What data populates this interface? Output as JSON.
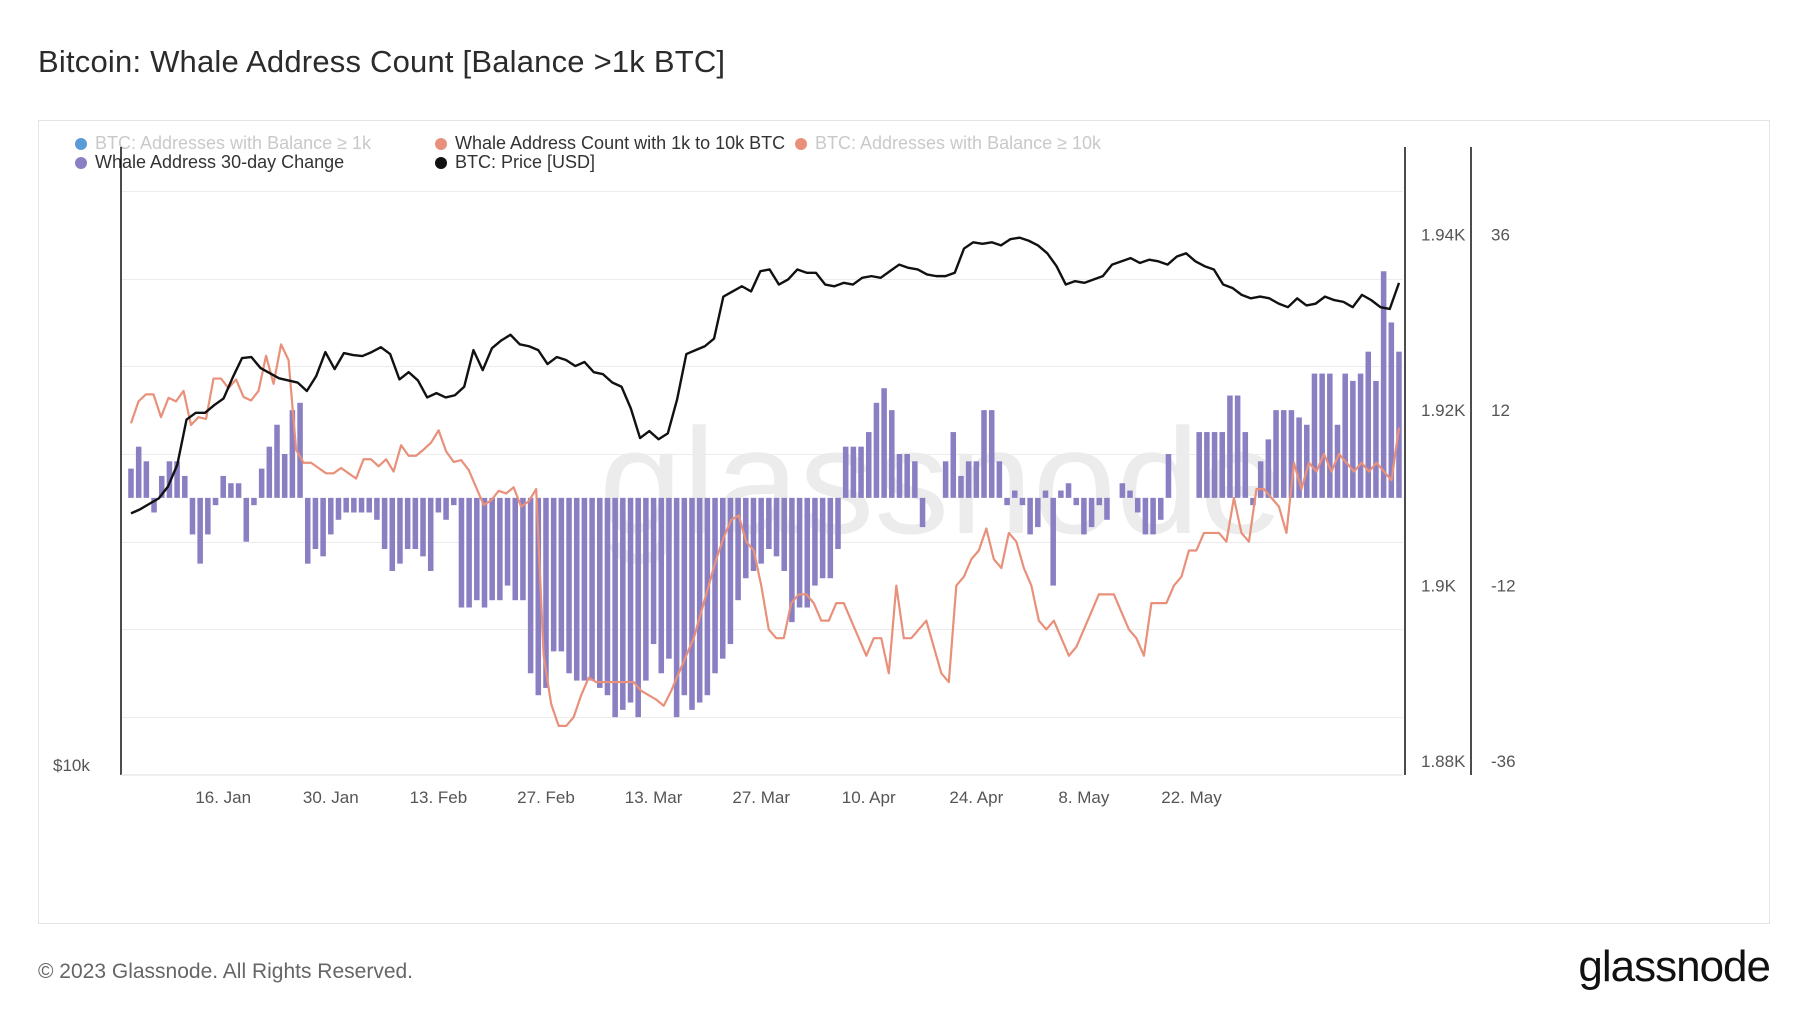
{
  "header": {
    "title": "Bitcoin: Whale Address Count [Balance >1k BTC]"
  },
  "footer": {
    "copyright": "© 2023 Glassnode. All Rights Reserved.",
    "brand": "glassnode"
  },
  "watermark": "glassnode",
  "legend": [
    {
      "label": "BTC: Addresses with Balance ≥ 1k",
      "color": "#5b9bd5",
      "active": false
    },
    {
      "label": "Whale Address Count with 1k to 10k BTC",
      "color": "#e8907a",
      "active": true
    },
    {
      "label": "BTC: Addresses with Balance ≥ 10k",
      "color": "#e8907a",
      "active": false
    },
    {
      "label": "Whale Address 30-day Change",
      "color": "#8a7fc2",
      "active": true
    },
    {
      "label": "BTC: Price [USD]",
      "color": "#111111",
      "active": true
    }
  ],
  "chart_data": {
    "type": "bar+line",
    "title": "Bitcoin: Whale Address Count [Balance >1k BTC]",
    "x_tick_labels": [
      "16. Jan",
      "30. Jan",
      "13. Feb",
      "27. Feb",
      "13. Mar",
      "27. Mar",
      "10. Apr",
      "24. Apr",
      "8. May",
      "22. May"
    ],
    "x_tick_day_index": [
      12,
      26,
      40,
      54,
      68,
      82,
      96,
      110,
      124,
      138
    ],
    "left_axis": {
      "label": "$10k",
      "scale": "log"
    },
    "right_axis_count": {
      "ticks": [
        "1.94K",
        "1.92K",
        "1.9K",
        "1.88K"
      ],
      "values": [
        1940,
        1920,
        1900,
        1880
      ],
      "range": [
        1880,
        1950
      ]
    },
    "right_axis_change": {
      "ticks": [
        "36",
        "12",
        "-12",
        "-36"
      ],
      "values": [
        36,
        12,
        -12,
        -36
      ],
      "range": [
        -36,
        48
      ]
    },
    "series": [
      {
        "name": "Whale Address 30-day Change",
        "type": "bar",
        "axis": "change",
        "color": "#8a7fc2",
        "values": [
          4,
          7,
          5,
          -2,
          3,
          5,
          5,
          3,
          -5,
          -9,
          -5,
          -1,
          3,
          2,
          2,
          -6,
          -1,
          4,
          7,
          10,
          6,
          12,
          13,
          -9,
          -7,
          -8,
          -5,
          -3,
          -2,
          -2,
          -2,
          -2,
          -3,
          -7,
          -10,
          -9,
          -7,
          -7,
          -8,
          -10,
          -2,
          -3,
          -1,
          -15,
          -15,
          -14,
          -15,
          -14,
          -14,
          -12,
          -14,
          -14,
          -24,
          -27,
          -26,
          -21,
          -21,
          -24,
          -25,
          -25,
          -25,
          -26,
          -27,
          -30,
          -29,
          -28,
          -30,
          -25,
          -20,
          -24,
          -22,
          -30,
          -27,
          -29,
          -28,
          -27,
          -24,
          -22,
          -20,
          -14,
          -11,
          -10,
          -9,
          -7,
          -8,
          -10,
          -17,
          -15,
          -15,
          -12,
          -11,
          -11,
          -7,
          7,
          7,
          7,
          9,
          13,
          15,
          12,
          6,
          6,
          5,
          -4,
          0,
          0,
          5,
          9,
          3,
          5,
          5,
          12,
          12,
          5,
          -1,
          1,
          -1,
          -5,
          -4,
          1,
          -12,
          1,
          2,
          -1,
          -5,
          -4,
          -1,
          -3,
          0,
          2,
          1,
          -2,
          -5,
          -5,
          -3,
          6,
          0,
          0,
          0,
          9,
          9,
          9,
          9,
          14,
          14,
          9,
          -1,
          5,
          8,
          12,
          12,
          12,
          11,
          10,
          17,
          17,
          17,
          10,
          17,
          16,
          17,
          20,
          16,
          31,
          24,
          20
        ]
      },
      {
        "name": "Whale Address Count with 1k to 10k BTC",
        "type": "line",
        "axis": "count",
        "color": "#e8907a",
        "values": [
          1918.5,
          1921,
          1921.8,
          1921.8,
          1919.2,
          1921.4,
          1921,
          1922.2,
          1918.3,
          1919.2,
          1919,
          1923.6,
          1923.6,
          1922.5,
          1923.5,
          1921.5,
          1921.1,
          1922.2,
          1926.2,
          1923,
          1927.5,
          1925.7,
          1915.5,
          1914,
          1914,
          1913.4,
          1912.8,
          1912.8,
          1913.4,
          1912.8,
          1912.2,
          1914.4,
          1914.4,
          1913.6,
          1914.4,
          1913,
          1916,
          1914.8,
          1914.8,
          1915.5,
          1916.3,
          1917.7,
          1915.3,
          1914.1,
          1914.3,
          1913.2,
          1911.2,
          1909.2,
          1909.7,
          1910.8,
          1910.5,
          1911.2,
          1909,
          1909.6,
          1911,
          1892,
          1886.5,
          1884,
          1884,
          1885,
          1887.5,
          1889.5,
          1889,
          1889,
          1889,
          1889,
          1889,
          1889,
          1888,
          1887.5,
          1887,
          1886.3,
          1888,
          1890,
          1892,
          1894,
          1897,
          1900,
          1903,
          1905.5,
          1907.5,
          1908,
          1905,
          1904,
          1900,
          1895,
          1894,
          1894,
          1898,
          1899,
          1899,
          1898,
          1896,
          1896,
          1898,
          1898,
          1896,
          1894,
          1892,
          1894,
          1894,
          1890,
          1900,
          1894,
          1894,
          1895,
          1896,
          1893,
          1890,
          1889,
          1900,
          1901,
          1903,
          1904,
          1906.5,
          1903,
          1902,
          1906,
          1905,
          1902,
          1900,
          1896,
          1895,
          1896,
          1894,
          1892,
          1893,
          1895,
          1897,
          1899,
          1899,
          1899,
          1897,
          1895,
          1894,
          1892,
          1898,
          1898,
          1898,
          1900,
          1901,
          1904,
          1904,
          1906,
          1906,
          1906,
          1905,
          1910,
          1906,
          1905,
          1911,
          1911,
          1910,
          1909,
          1906,
          1914,
          1911,
          1914,
          1913,
          1915,
          1913,
          1915,
          1914,
          1913,
          1914,
          1913,
          1914,
          1913,
          1912,
          1918
        ]
      },
      {
        "name": "BTC: Price [USD]",
        "type": "line",
        "axis": "price",
        "color": "#111111",
        "values": [
          16950,
          17100,
          17300,
          17500,
          17950,
          18800,
          20700,
          21000,
          21000,
          21350,
          21650,
          22650,
          23600,
          23650,
          23100,
          22850,
          22600,
          22500,
          22400,
          22000,
          22700,
          23900,
          23050,
          23850,
          23750,
          23700,
          23900,
          24150,
          23800,
          22550,
          22900,
          22500,
          21700,
          21900,
          21700,
          21800,
          22200,
          24000,
          23000,
          24100,
          24500,
          24800,
          24300,
          24200,
          24000,
          23300,
          23650,
          23500,
          23200,
          23400,
          22900,
          22800,
          22400,
          22200,
          21200,
          19900,
          20200,
          19850,
          20100,
          21600,
          23800,
          24000,
          24200,
          24600,
          26900,
          27200,
          27500,
          27200,
          28400,
          28500,
          27600,
          27900,
          28500,
          28300,
          28300,
          27600,
          27500,
          27700,
          27600,
          28000,
          28100,
          28000,
          28400,
          28800,
          28600,
          28500,
          28200,
          28100,
          28100,
          28300,
          29800,
          30200,
          30100,
          30200,
          30000,
          30400,
          30500,
          30300,
          30000,
          29500,
          28700,
          27600,
          27800,
          27700,
          27900,
          28100,
          28800,
          29000,
          29200,
          28900,
          29100,
          29000,
          28800,
          29300,
          29500,
          29000,
          28700,
          28500,
          27600,
          27400,
          27000,
          26800,
          26900,
          26800,
          26500,
          26300,
          26800,
          26400,
          26500,
          26900,
          26700,
          26600,
          26300,
          27000,
          26700,
          26300,
          26200,
          27700
        ]
      }
    ]
  }
}
